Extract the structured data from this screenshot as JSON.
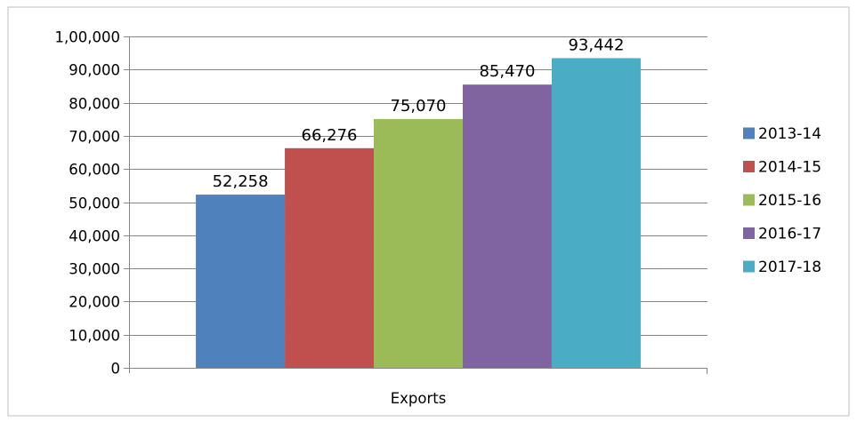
{
  "chart_data": {
    "type": "bar",
    "categories": [
      "Exports"
    ],
    "series": [
      {
        "name": "2013-14",
        "values": [
          52258
        ],
        "value_label": "52,258",
        "color": "#4F81BD"
      },
      {
        "name": "2014-15",
        "values": [
          66276
        ],
        "value_label": "66,276",
        "color": "#C0504D"
      },
      {
        "name": "2015-16",
        "values": [
          75070
        ],
        "value_label": "75,070",
        "color": "#9BBB59"
      },
      {
        "name": "2016-17",
        "values": [
          85470
        ],
        "value_label": "85,470",
        "color": "#8064A2"
      },
      {
        "name": "2017-18",
        "values": [
          93442
        ],
        "value_label": "93,442",
        "color": "#4BACC6"
      }
    ],
    "y_ticks": [
      {
        "value": 0,
        "label": "0"
      },
      {
        "value": 10000,
        "label": "10,000"
      },
      {
        "value": 20000,
        "label": "20,000"
      },
      {
        "value": 30000,
        "label": "30,000"
      },
      {
        "value": 40000,
        "label": "40,000"
      },
      {
        "value": 50000,
        "label": "50,000"
      },
      {
        "value": 60000,
        "label": "60,000"
      },
      {
        "value": 70000,
        "label": "70,000"
      },
      {
        "value": 80000,
        "label": "80,000"
      },
      {
        "value": 90000,
        "label": "90,000"
      },
      {
        "value": 100000,
        "label": "1,00,000"
      }
    ],
    "ylim": [
      0,
      100000
    ],
    "grid": true,
    "legend": "right",
    "title": "",
    "xlabel": "",
    "ylabel": ""
  }
}
